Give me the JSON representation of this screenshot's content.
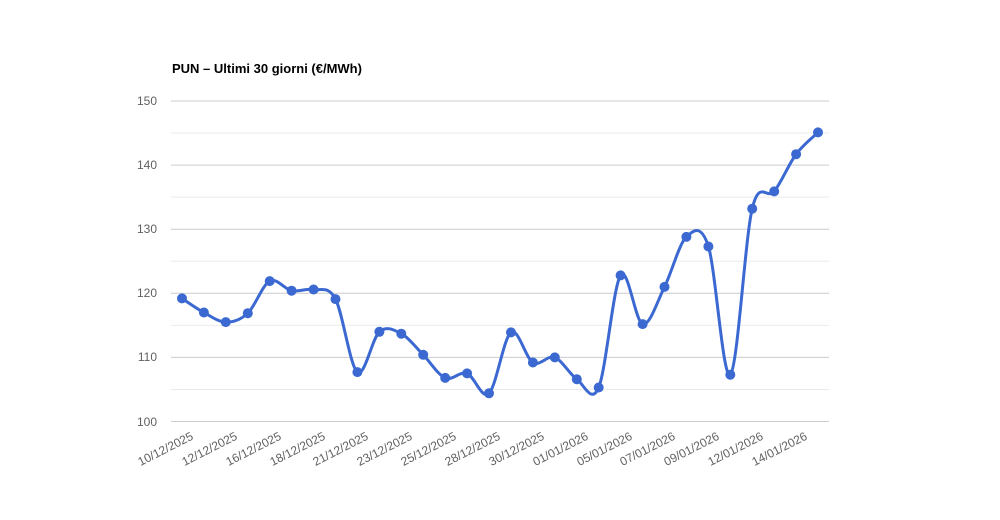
{
  "chart_data": {
    "type": "line",
    "title": "PUN – Ultimi 30 giorni (€/MWh)",
    "xlabel": "",
    "ylabel": "",
    "ylim": [
      100,
      150
    ],
    "y_major_ticks": [
      150,
      140,
      130,
      120,
      110,
      100
    ],
    "y_minor_step": 5,
    "grid": true,
    "legend": "none",
    "smooth": true,
    "x_tick_every": 2,
    "x_tick_labels": [
      "10/12/2025",
      "12/12/2025",
      "16/12/2025",
      "18/12/2025",
      "21/12/2025",
      "23/12/2025",
      "25/12/2025",
      "28/12/2025",
      "30/12/2025",
      "01/01/2026",
      "05/01/2026",
      "07/01/2026",
      "09/01/2026",
      "12/01/2026",
      "14/01/2026"
    ],
    "values": [
      119.2,
      117.0,
      115.5,
      116.9,
      121.9,
      120.4,
      120.6,
      119.1,
      107.7,
      114.0,
      113.7,
      110.4,
      106.8,
      107.5,
      104.4,
      113.9,
      109.2,
      110.0,
      106.6,
      105.3,
      122.8,
      115.2,
      121.0,
      128.8,
      127.3,
      107.3,
      133.2,
      135.9,
      141.7,
      145.1
    ],
    "colors": {
      "line": "#3b69d1",
      "point": "#3b69d1",
      "grid_major": "#cccccc",
      "grid_minor": "#ebebeb",
      "axis_text": "#616161",
      "title_text": "#000000",
      "background": "#ffffff"
    }
  }
}
